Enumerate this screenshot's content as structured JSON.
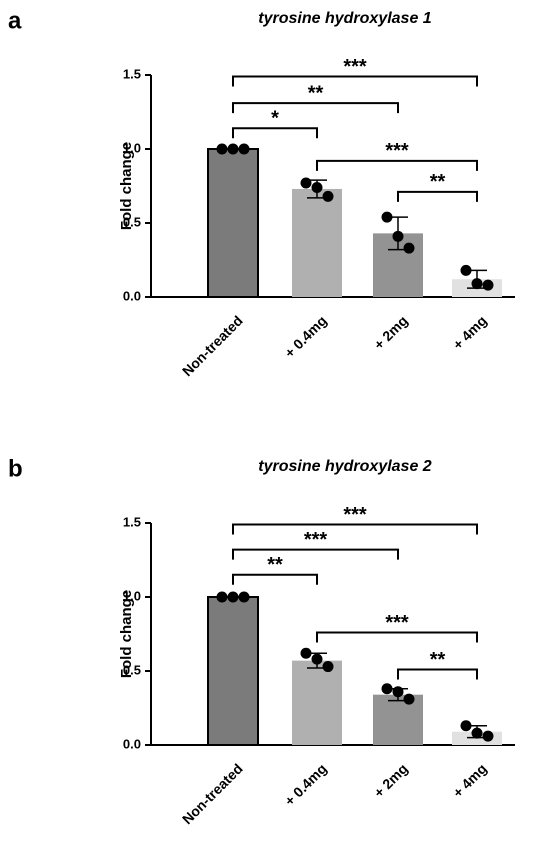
{
  "chart_data": [
    {
      "type": "bar",
      "panel_label": "a",
      "title": "tyrosine hydroxylase 1",
      "y_label": "Fold change",
      "categories": [
        "Non-treated",
        "+ 0.4mg",
        "+ 2mg",
        "+ 4mg"
      ],
      "values": [
        1.0,
        0.73,
        0.43,
        0.12
      ],
      "errors": [
        0.0,
        0.06,
        0.11,
        0.06
      ],
      "points": [
        [
          1.0,
          1.0,
          1.0
        ],
        [
          0.77,
          0.68,
          0.74
        ],
        [
          0.54,
          0.33,
          0.41
        ],
        [
          0.18,
          0.08,
          0.09
        ]
      ],
      "colors": [
        "#7b7b7b",
        "#b0b0b0",
        "#939393",
        "#e1e1e1"
      ],
      "ylim": [
        0,
        1.5
      ],
      "yticks": [
        {
          "value": 0,
          "label": "0.0"
        },
        0.5,
        {
          "value": 1,
          "label": "1.0"
        },
        1.5
      ],
      "comparisons": [
        {
          "pair": [
            0,
            3
          ],
          "label": "***"
        },
        {
          "pair": [
            0,
            2
          ],
          "label": "**"
        },
        {
          "pair": [
            0,
            1
          ],
          "label": "*"
        },
        {
          "pair": [
            1,
            3
          ],
          "label": "***"
        },
        {
          "pair": [
            2,
            3
          ],
          "label": "**"
        }
      ]
    },
    {
      "type": "bar",
      "panel_label": "b",
      "title": "tyrosine hydroxylase 2",
      "y_label": "Fold change",
      "categories": [
        "Non-treated",
        "+ 0.4mg",
        "+ 2mg",
        "+ 4mg"
      ],
      "values": [
        1.0,
        0.57,
        0.34,
        0.09
      ],
      "errors": [
        0.0,
        0.05,
        0.04,
        0.04
      ],
      "points": [
        [
          1.0,
          1.0,
          1.0
        ],
        [
          0.62,
          0.53,
          0.58
        ],
        [
          0.38,
          0.31,
          0.36
        ],
        [
          0.13,
          0.06,
          0.08
        ]
      ],
      "colors": [
        "#7b7b7b",
        "#b0b0b0",
        "#939393",
        "#e1e1e1"
      ],
      "ylim": [
        0,
        1.5
      ],
      "yticks": [
        {
          "value": 0,
          "label": "0.0"
        },
        0.5,
        {
          "value": 1,
          "label": "1.0"
        },
        1.5
      ],
      "comparisons": [
        {
          "pair": [
            0,
            3
          ],
          "label": "***"
        },
        {
          "pair": [
            0,
            2
          ],
          "label": "***"
        },
        {
          "pair": [
            0,
            1
          ],
          "label": "**"
        },
        {
          "pair": [
            1,
            3
          ],
          "label": "***"
        },
        {
          "pair": [
            2,
            3
          ],
          "label": "**"
        }
      ]
    }
  ]
}
